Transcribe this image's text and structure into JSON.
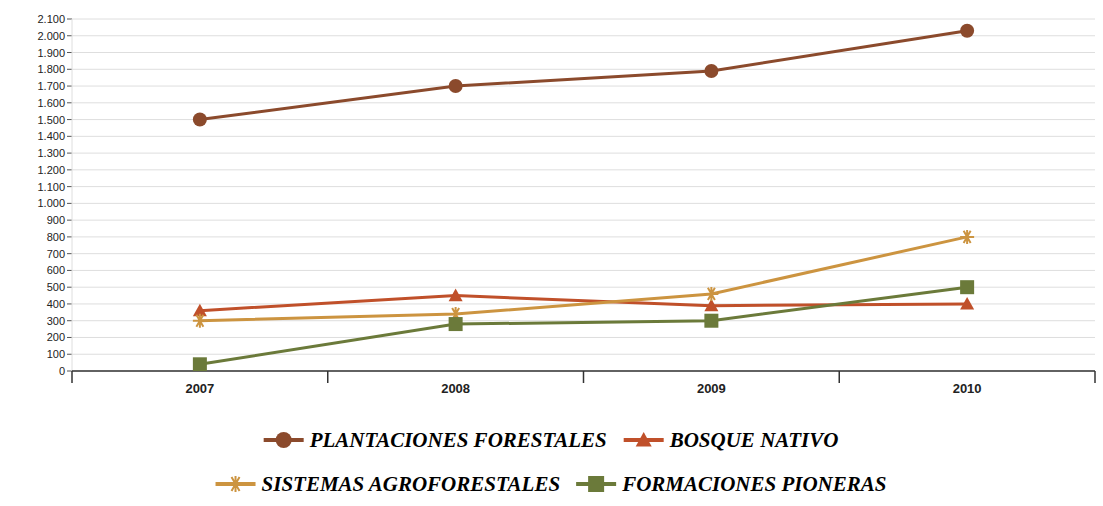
{
  "chart_data": {
    "type": "line",
    "categories": [
      "2007",
      "2008",
      "2009",
      "2010"
    ],
    "series": [
      {
        "name": "PLANTACIONES FORESTALES",
        "color": "#8b4a2c",
        "marker": "circle",
        "line_style": "solid",
        "values": [
          1500,
          1700,
          1790,
          2030
        ]
      },
      {
        "name": "BOSQUE NATIVO",
        "color": "#c0502a",
        "marker": "triangle",
        "line_style": "solid",
        "values": [
          360,
          450,
          390,
          400
        ]
      },
      {
        "name": "SISTEMAS AGROFORESTALES",
        "color": "#cc9440",
        "marker": "star",
        "line_style": "solid",
        "values": [
          300,
          340,
          460,
          800
        ]
      },
      {
        "name": "FORMACIONES PIONERAS",
        "color": "#6b7a3a",
        "marker": "square",
        "line_style": "solid",
        "values": [
          40,
          280,
          300,
          500
        ]
      }
    ],
    "ylim": [
      0,
      2100
    ],
    "yticks": [
      0,
      100,
      200,
      300,
      400,
      500,
      600,
      700,
      800,
      900,
      {
        "value": 1000,
        "label": "1.000"
      },
      {
        "value": 1100,
        "label": "1.100"
      },
      {
        "value": 1200,
        "label": "1.200"
      },
      {
        "value": 1300,
        "label": "1.300"
      },
      {
        "value": 1400,
        "label": "1.400"
      },
      {
        "value": 1500,
        "label": "1.500"
      },
      {
        "value": 1600,
        "label": "1.600"
      },
      {
        "value": 1700,
        "label": "1.700"
      },
      {
        "value": 1800,
        "label": "1.800"
      },
      {
        "value": 1900,
        "label": "1.900"
      },
      {
        "value": 2000,
        "label": "2.000"
      },
      {
        "value": 2100,
        "label": "2.100"
      }
    ],
    "grid": true,
    "legend": "bottom"
  }
}
